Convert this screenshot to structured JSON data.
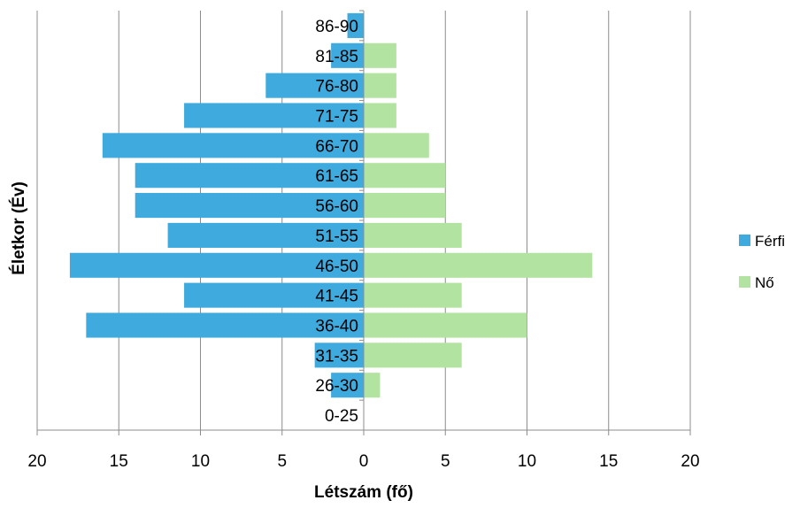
{
  "chart_data": {
    "type": "bar",
    "orientation": "horizontal",
    "layout": "population-pyramid",
    "title": "",
    "xlabel": "Létszám (fő)",
    "ylabel": "Életkor (Év)",
    "xlim": [
      -20,
      20
    ],
    "x_tick_values": [
      -20,
      -15,
      -10,
      -5,
      0,
      5,
      10,
      15,
      20
    ],
    "x_tick_labels": [
      "20",
      "15",
      "10",
      "5",
      "0",
      "5",
      "10",
      "15",
      "20"
    ],
    "grid": "vertical",
    "legend_position": "right",
    "categories": [
      "86-90",
      "81-85",
      "76-80",
      "71-75",
      "66-70",
      "61-65",
      "56-60",
      "51-55",
      "46-50",
      "41-45",
      "36-40",
      "31-35",
      "26-30",
      "0-25"
    ],
    "series": [
      {
        "name": "Férfi",
        "color": "#3FAADE",
        "side": "left",
        "values": [
          1,
          2,
          6,
          11,
          16,
          14,
          14,
          12,
          18,
          11,
          17,
          3,
          2,
          0
        ]
      },
      {
        "name": "Nő",
        "color": "#B2E3A0",
        "side": "right",
        "values": [
          0,
          2,
          2,
          2,
          4,
          5,
          5,
          6,
          14,
          6,
          10,
          6,
          1,
          0
        ]
      }
    ]
  }
}
